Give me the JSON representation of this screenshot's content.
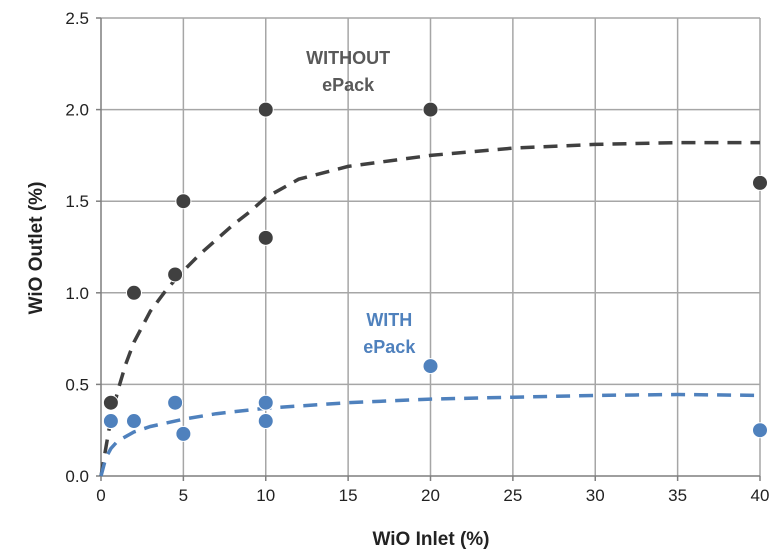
{
  "chart_data": {
    "type": "scatter",
    "title": "",
    "xlabel": "WiO Inlet (%)",
    "ylabel": "WiO Outlet (%)",
    "xticks": [
      0,
      5,
      10,
      15,
      20,
      25,
      30,
      35,
      40
    ],
    "yticks": [
      "0.0",
      "0.5",
      "1.0",
      "1.5",
      "2.0",
      "2.5"
    ],
    "xlim": [
      0,
      40
    ],
    "ylim": [
      0,
      2.5
    ],
    "grid": true,
    "colors": {
      "without": "#404040",
      "with": "#4f81bd",
      "grid": "#a6a6a6",
      "axis": "#7f7f7f"
    },
    "series": [
      {
        "key": "without",
        "color": "#404040",
        "points": [
          [
            0.6,
            0.4
          ],
          [
            2,
            1.0
          ],
          [
            4.5,
            1.1
          ],
          [
            5,
            1.5
          ],
          [
            10,
            1.3
          ],
          [
            10,
            2.0
          ],
          [
            20,
            2.0
          ],
          [
            40,
            1.6
          ]
        ],
        "trend": {
          "style": "dashed",
          "points": [
            [
              0,
              0
            ],
            [
              0.5,
              0.26
            ],
            [
              1,
              0.46
            ],
            [
              1.5,
              0.61
            ],
            [
              2,
              0.73
            ],
            [
              3,
              0.9
            ],
            [
              4,
              1.02
            ],
            [
              5,
              1.12
            ],
            [
              6,
              1.21
            ],
            [
              7,
              1.29
            ],
            [
              8,
              1.37
            ],
            [
              9,
              1.44
            ],
            [
              10,
              1.52
            ],
            [
              12,
              1.62
            ],
            [
              15,
              1.69
            ],
            [
              20,
              1.75
            ],
            [
              25,
              1.79
            ],
            [
              30,
              1.81
            ],
            [
              35,
              1.82
            ],
            [
              40,
              1.82
            ]
          ]
        }
      },
      {
        "key": "with",
        "color": "#4f81bd",
        "points": [
          [
            0.6,
            0.3
          ],
          [
            2,
            0.3
          ],
          [
            4.5,
            0.4
          ],
          [
            5,
            0.23
          ],
          [
            10,
            0.3
          ],
          [
            10,
            0.4
          ],
          [
            20,
            0.6
          ],
          [
            40,
            0.25
          ]
        ],
        "trend": {
          "style": "dashed",
          "points": [
            [
              0,
              0
            ],
            [
              0.3,
              0.1
            ],
            [
              0.6,
              0.15
            ],
            [
              1,
              0.19
            ],
            [
              2,
              0.24
            ],
            [
              3,
              0.27
            ],
            [
              5,
              0.31
            ],
            [
              7,
              0.34
            ],
            [
              10,
              0.37
            ],
            [
              15,
              0.4
            ],
            [
              20,
              0.42
            ],
            [
              25,
              0.43
            ],
            [
              30,
              0.44
            ],
            [
              35,
              0.445
            ],
            [
              40,
              0.44
            ]
          ]
        }
      }
    ],
    "annotations": [
      {
        "key": "without",
        "lines": [
          "WITHOUT",
          "ePack"
        ],
        "color": "#595959",
        "at": [
          15,
          2.25
        ]
      },
      {
        "key": "with",
        "lines": [
          "WITH",
          "ePack"
        ],
        "color": "#4f81bd",
        "at": [
          17.5,
          0.82
        ]
      }
    ]
  }
}
